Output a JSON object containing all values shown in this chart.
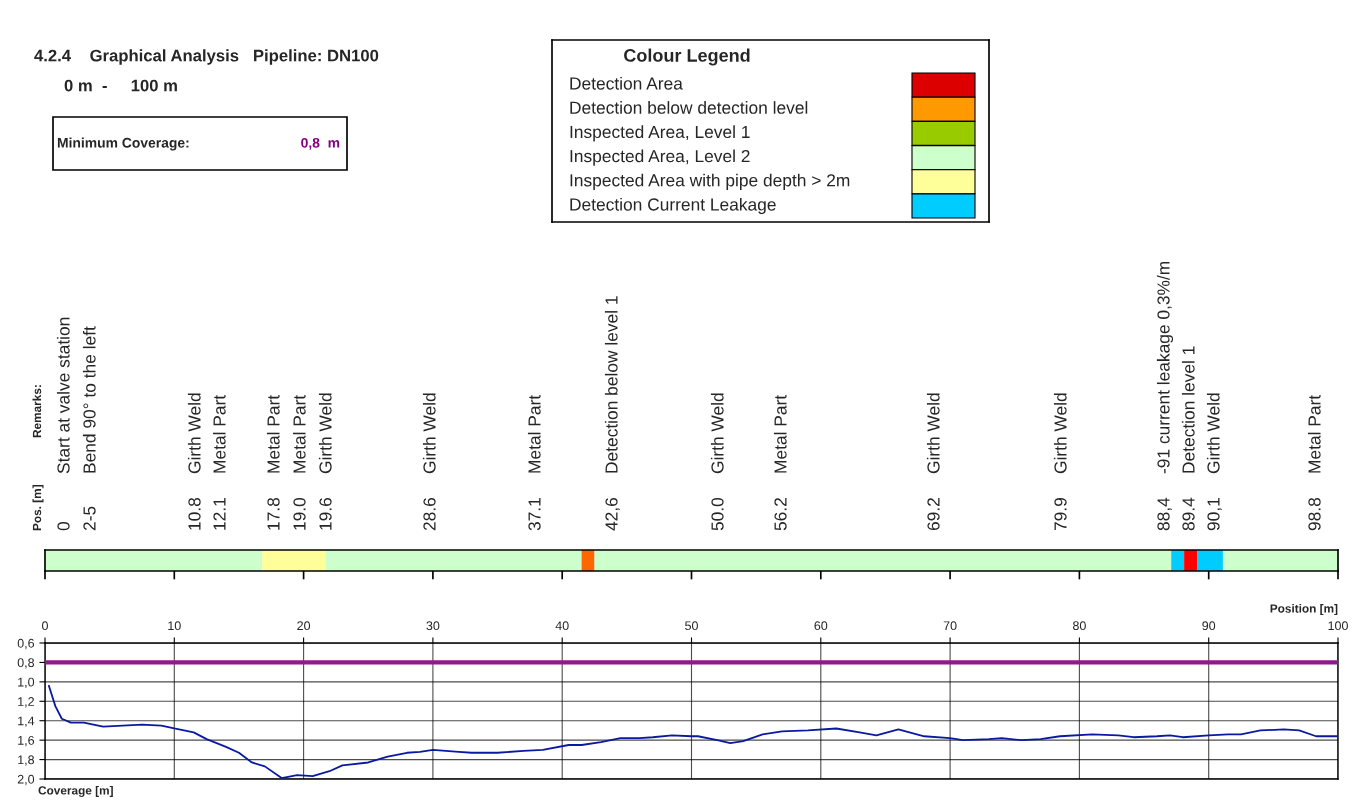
{
  "chart_data": [
    {
      "type": "other",
      "title": "4.2.4    Graphical Analysis   Pipeline: DN100",
      "subtitle": "0 m  -     100 m",
      "annotations": [
        "Minimum Coverage:",
        "0,8  m"
      ]
    },
    {
      "type": "other",
      "title": "Colour Legend",
      "categories": [
        "Detection Area",
        "Detection below detection level",
        "Inspected Area, Level 1",
        "Inspected Area, Level 2",
        "Inspected Area with pipe depth > 2m",
        "Detection Current Leakage"
      ],
      "colors": [
        "#dd0000",
        "#ff9900",
        "#99cc00",
        "#ccffcc",
        "#ffff99",
        "#00ccff"
      ]
    },
    {
      "type": "bar",
      "orientation": "horizontal",
      "stacked": true,
      "categories": [
        null
      ],
      "xlim": [
        0,
        100
      ],
      "xticks": [
        0,
        10,
        20,
        30,
        40,
        50,
        60,
        70,
        80,
        90,
        100
      ],
      "tick_labels": false,
      "series": [
        {
          "color": "#ccffcc",
          "values": [
            16.8
          ]
        },
        {
          "color": "#ffff99",
          "values": [
            4.9
          ]
        },
        {
          "color": "#ccffcc",
          "values": [
            19.8
          ]
        },
        {
          "color": "#ff6600",
          "values": [
            1.0
          ]
        },
        {
          "color": "#ccffcc",
          "values": [
            44.6
          ]
        },
        {
          "color": "#00ccff",
          "values": [
            1.0
          ]
        },
        {
          "color": "#ff0000",
          "values": [
            1.0
          ]
        },
        {
          "color": "#00ccff",
          "values": [
            2.0
          ]
        },
        {
          "color": "#ccffcc",
          "values": [
            8.9
          ]
        }
      ],
      "annotations": [
        "Pos. [m]",
        "Remarks:",
        "0",
        "Start at valve station",
        "2-5",
        "Bend 90° to the left",
        "10.8",
        "Girth Weld",
        "12.1",
        "Metal Part",
        "17.8",
        "Metal Part",
        "19.0",
        "Metal Part",
        "19.6",
        "Girth Weld",
        "28.6",
        "Girth Weld",
        "37.1",
        "Metal Part",
        "42,6",
        "Detection below level 1",
        "50.0",
        "Girth Weld",
        "56.2",
        "Metal Part",
        "69.2",
        "Girth Weld",
        "79.9",
        "Girth Weld",
        "88,4",
        "-91 current leakage 0,3%/m",
        "89.4",
        "Detection level 1",
        "90,1",
        "Girth Weld",
        "98.8",
        "Metal Part"
      ]
    },
    {
      "type": "line",
      "xlabel": "Position [m]",
      "annotations": [
        "Coverage [m]"
      ],
      "xlim": [
        0,
        100
      ],
      "xticks": [
        0,
        10,
        20,
        30,
        40,
        50,
        60,
        70,
        80,
        90,
        100
      ],
      "ylim": [
        2.0,
        0.6
      ],
      "yticks": [
        {
          "value": 0.6,
          "label": "0,6"
        },
        {
          "value": 0.8,
          "label": "0,8"
        },
        {
          "value": 1.0,
          "label": "1,0"
        },
        {
          "value": 1.2,
          "label": "1,2"
        },
        {
          "value": 1.4,
          "label": "1,4"
        },
        {
          "value": 1.6,
          "label": "1,6"
        },
        {
          "value": 1.8,
          "label": "1,8"
        },
        {
          "value": 2.0,
          "label": "2,0"
        }
      ],
      "grid": true,
      "ref_lines": [
        {
          "axis": "y",
          "value": 0.8,
          "color": "#8e1a8e"
        }
      ],
      "series": [
        {
          "color": "#0a1aa0",
          "x": [
            0.3,
            0.8,
            1.3,
            2,
            3,
            4.5,
            6,
            7.5,
            9,
            10,
            11.5,
            12.5,
            14,
            15,
            16,
            17,
            18.3,
            19.5,
            20.7,
            22,
            23,
            25,
            26.5,
            28,
            29,
            30,
            32,
            33,
            35,
            37,
            38.5,
            40.5,
            41.5,
            43,
            44.5,
            46,
            47,
            48.5,
            50,
            50.5,
            52,
            53,
            54,
            55.5,
            57,
            59,
            61.2,
            63,
            64.3,
            66,
            68,
            70,
            71,
            73,
            74,
            75.5,
            77,
            78.5,
            81,
            83,
            84.2,
            86,
            87,
            88,
            90,
            91.5,
            92.5,
            94,
            95.8,
            97,
            98.3,
            100
          ],
          "values": [
            1.04,
            1.25,
            1.38,
            1.42,
            1.42,
            1.46,
            1.45,
            1.44,
            1.45,
            1.48,
            1.52,
            1.59,
            1.67,
            1.73,
            1.83,
            1.87,
            1.99,
            1.96,
            1.97,
            1.92,
            1.86,
            1.83,
            1.77,
            1.73,
            1.72,
            1.7,
            1.72,
            1.73,
            1.73,
            1.71,
            1.7,
            1.65,
            1.65,
            1.62,
            1.58,
            1.58,
            1.57,
            1.55,
            1.56,
            1.56,
            1.6,
            1.63,
            1.61,
            1.54,
            1.51,
            1.5,
            1.48,
            1.52,
            1.55,
            1.49,
            1.56,
            1.58,
            1.6,
            1.59,
            1.58,
            1.6,
            1.59,
            1.56,
            1.54,
            1.55,
            1.57,
            1.56,
            1.55,
            1.57,
            1.55,
            1.54,
            1.54,
            1.5,
            1.49,
            1.5,
            1.56,
            1.56
          ]
        }
      ]
    }
  ]
}
